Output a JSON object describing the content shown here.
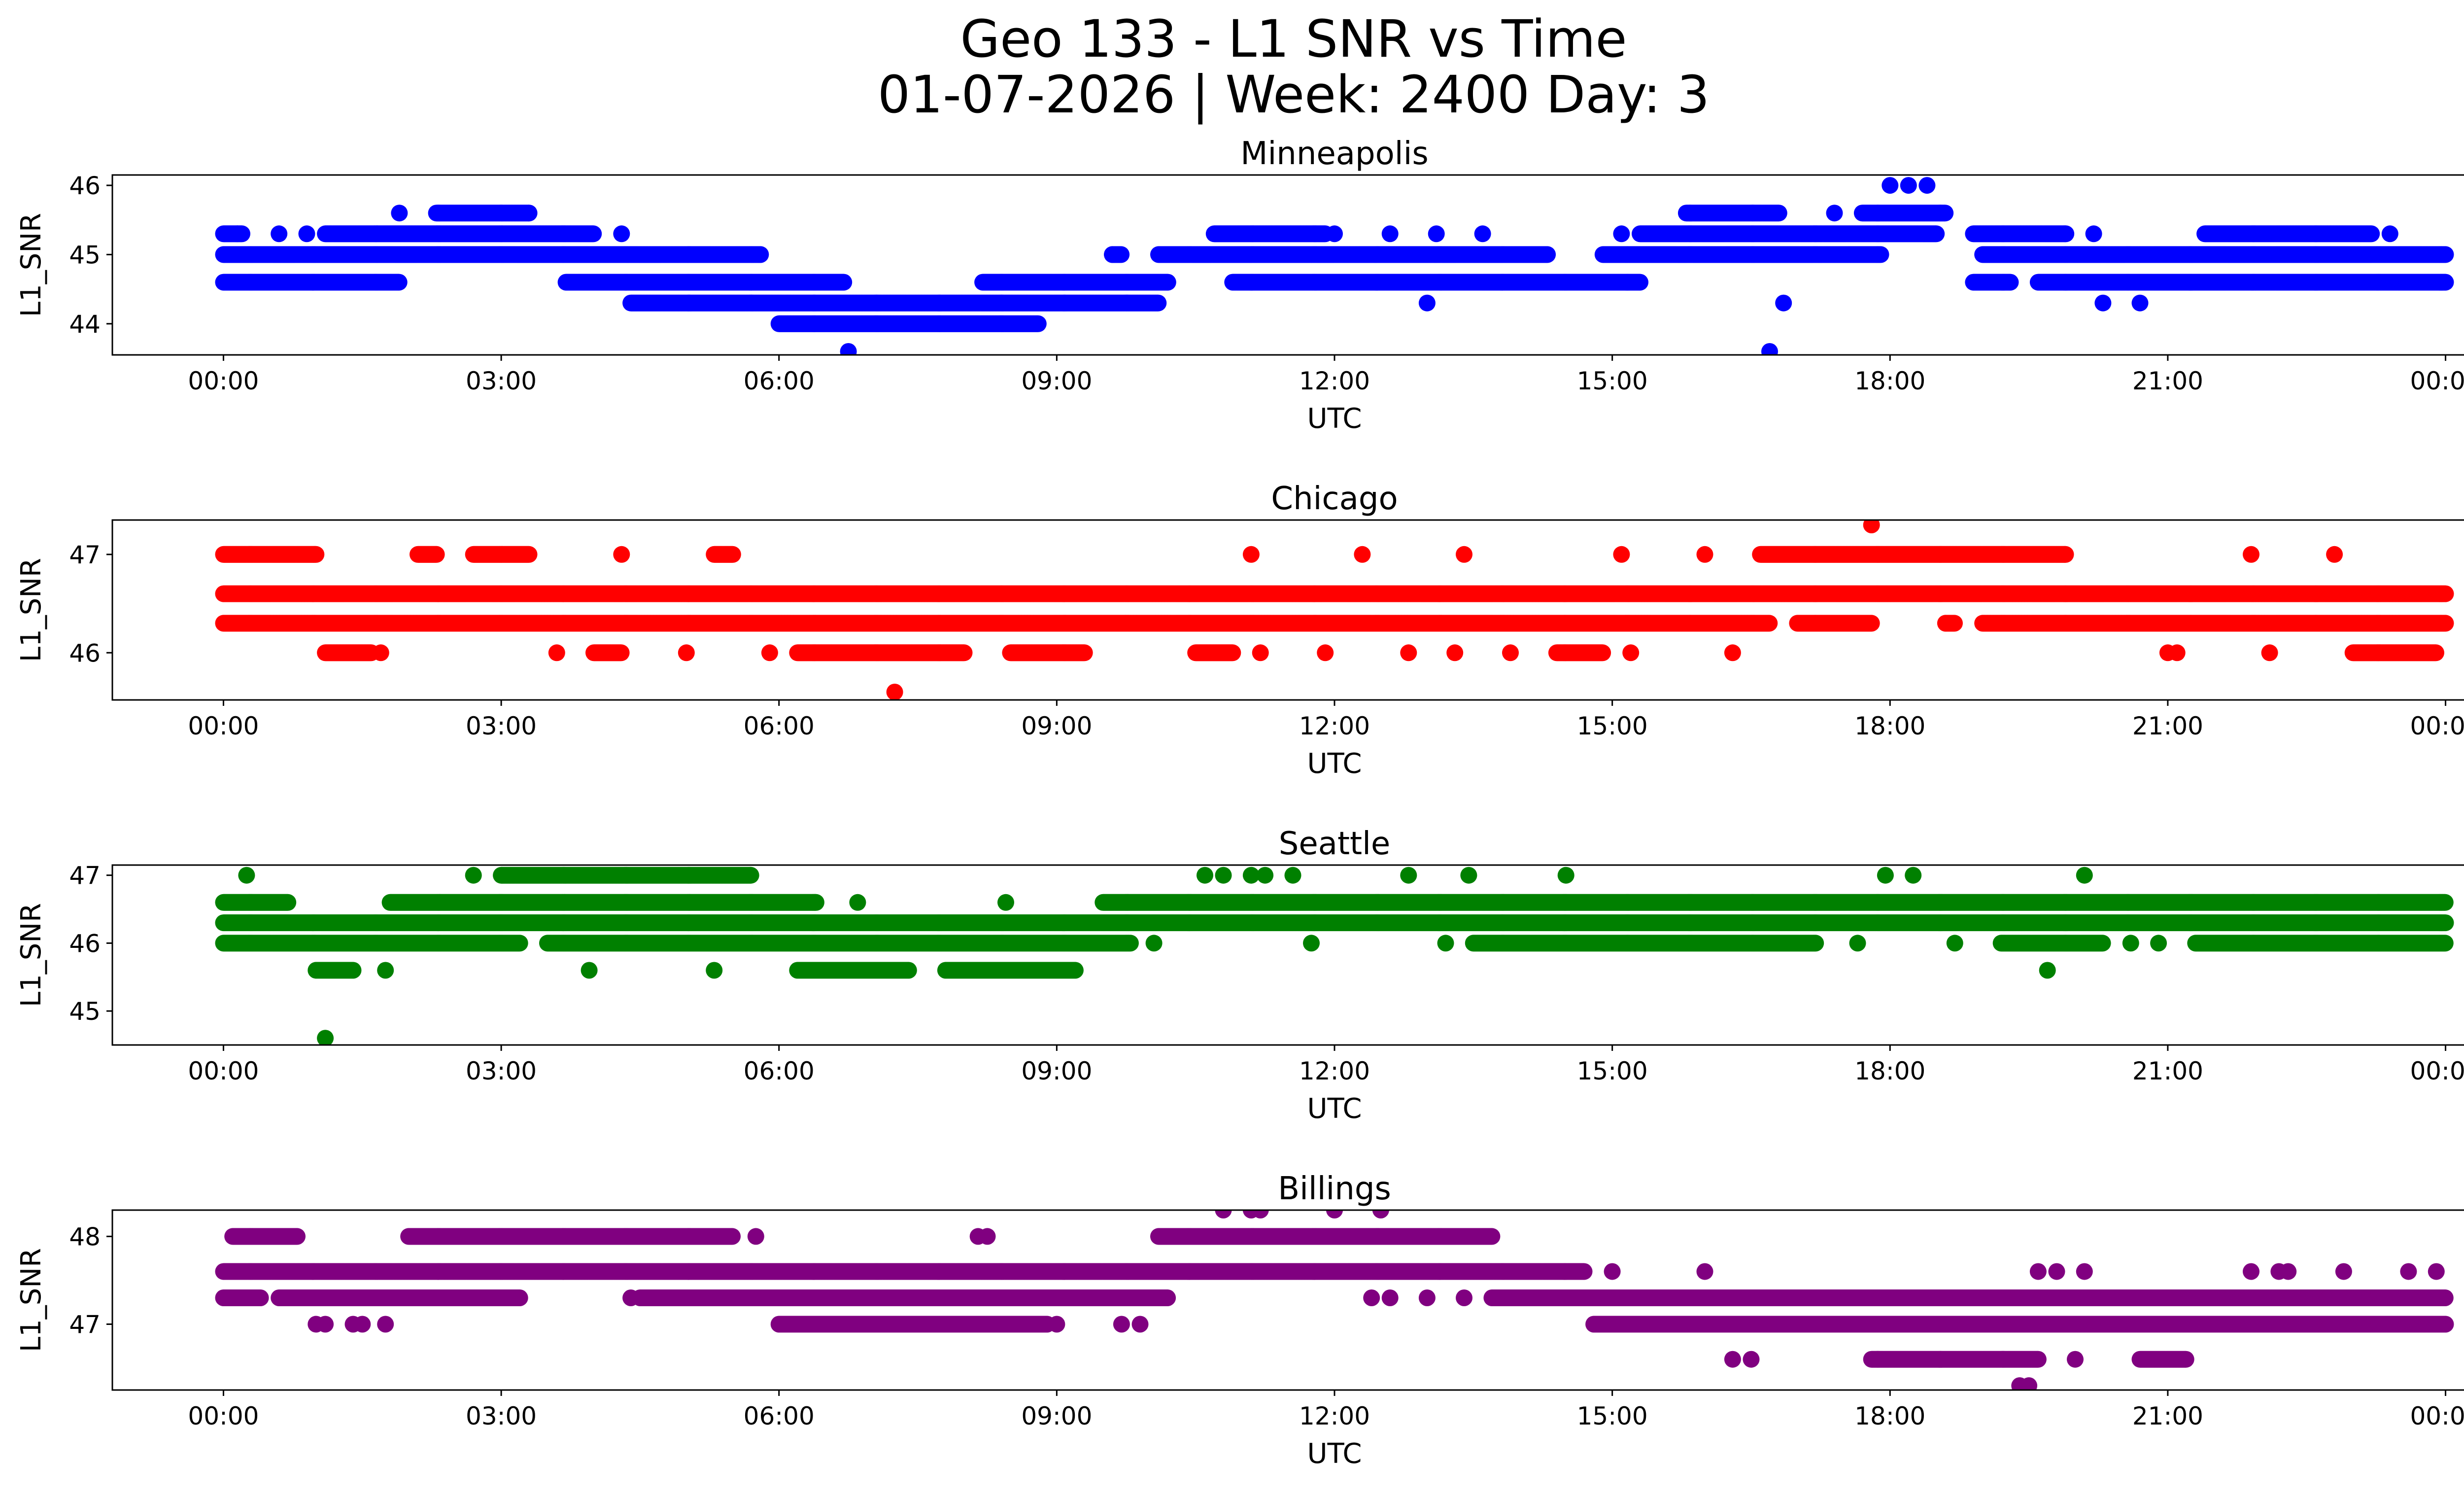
{
  "chart_data": {
    "title_line1": "Geo 133 - L1 SNR vs Time",
    "title_line2": "01-07-2026 | Week: 2400 Day: 3",
    "xlabel": "UTC",
    "ylabel": "L1_SNR",
    "x_ticks": [
      "00:00",
      "03:00",
      "06:00",
      "09:00",
      "12:00",
      "15:00",
      "18:00",
      "21:00",
      "00:00"
    ],
    "x_range_hours": [
      -1.2,
      25.2
    ],
    "subplots": [
      {
        "type": "scatter",
        "title": "Minneapolis",
        "color": "#0000ff",
        "ylim": [
          43.55,
          46.15
        ],
        "y_ticks": [
          "44",
          "45",
          "46"
        ],
        "y_tick_values": [
          44,
          45,
          46
        ],
        "bands": [
          {
            "y": 45.0,
            "segments": [
              [
                0.0,
                5.8
              ],
              [
                9.6,
                9.7
              ],
              [
                10.1,
                14.3
              ],
              [
                14.9,
                17.9
              ],
              [
                19.0,
                24.0
              ]
            ]
          },
          {
            "y": 44.6,
            "segments": [
              [
                0.0,
                1.9
              ],
              [
                3.7,
                6.7
              ],
              [
                8.2,
                10.2
              ],
              [
                10.9,
                15.3
              ],
              [
                18.9,
                19.3
              ],
              [
                19.6,
                24.0
              ]
            ]
          },
          {
            "y": 45.3,
            "segments": [
              [
                0.0,
                0.2
              ],
              [
                1.1,
                4.0
              ],
              [
                10.7,
                11.9
              ],
              [
                15.3,
                18.5
              ],
              [
                18.9,
                19.9
              ],
              [
                21.4,
                23.2
              ]
            ]
          },
          {
            "y": 44.3,
            "segments": [
              [
                4.4,
                10.1
              ]
            ]
          },
          {
            "y": 44.0,
            "segments": [
              [
                6.0,
                8.8
              ]
            ]
          },
          {
            "y": 45.6,
            "segments": [
              [
                2.3,
                3.3
              ],
              [
                15.8,
                16.8
              ],
              [
                17.7,
                18.6
              ]
            ]
          }
        ],
        "points": [
          {
            "x": 0.15,
            "y": 45.3
          },
          {
            "x": 0.6,
            "y": 45.3
          },
          {
            "x": 0.9,
            "y": 45.3
          },
          {
            "x": 1.9,
            "y": 45.6
          },
          {
            "x": 3.3,
            "y": 45.6
          },
          {
            "x": 4.3,
            "y": 45.3
          },
          {
            "x": 5.8,
            "y": 45.0
          },
          {
            "x": 6.75,
            "y": 43.6
          },
          {
            "x": 9.6,
            "y": 45.0
          },
          {
            "x": 12.0,
            "y": 45.3
          },
          {
            "x": 12.6,
            "y": 45.3
          },
          {
            "x": 13.0,
            "y": 44.3
          },
          {
            "x": 13.1,
            "y": 45.3
          },
          {
            "x": 13.6,
            "y": 45.3
          },
          {
            "x": 15.1,
            "y": 45.3
          },
          {
            "x": 16.7,
            "y": 43.6
          },
          {
            "x": 16.85,
            "y": 44.3
          },
          {
            "x": 17.4,
            "y": 45.6
          },
          {
            "x": 18.0,
            "y": 46.0
          },
          {
            "x": 18.2,
            "y": 46.0
          },
          {
            "x": 18.4,
            "y": 46.0
          },
          {
            "x": 20.2,
            "y": 45.3
          },
          {
            "x": 20.3,
            "y": 44.3
          },
          {
            "x": 20.7,
            "y": 44.3
          },
          {
            "x": 23.4,
            "y": 45.3
          }
        ]
      },
      {
        "type": "scatter",
        "title": "Chicago",
        "color": "#ff0000",
        "ylim": [
          45.52,
          47.35
        ],
        "y_ticks": [
          "46",
          "47"
        ],
        "y_tick_values": [
          46,
          47
        ],
        "bands": [
          {
            "y": 46.6,
            "segments": [
              [
                0.0,
                24.0
              ]
            ]
          },
          {
            "y": 46.3,
            "segments": [
              [
                0.0,
                16.7
              ],
              [
                17.0,
                17.8
              ],
              [
                18.6,
                18.7
              ],
              [
                19.0,
                24.0
              ]
            ]
          },
          {
            "y": 47.0,
            "segments": [
              [
                0.0,
                1.0
              ],
              [
                2.1,
                2.3
              ],
              [
                2.7,
                3.3
              ],
              [
                5.3,
                5.5
              ],
              [
                16.6,
                19.9
              ]
            ]
          },
          {
            "y": 46.0,
            "segments": [
              [
                1.1,
                1.6
              ],
              [
                4.0,
                4.3
              ],
              [
                6.2,
                8.0
              ],
              [
                8.5,
                9.3
              ],
              [
                10.5,
                10.9
              ],
              [
                14.4,
                14.9
              ],
              [
                23.0,
                23.9
              ]
            ]
          }
        ],
        "points": [
          {
            "x": 1.7,
            "y": 46.0
          },
          {
            "x": 3.6,
            "y": 46.0
          },
          {
            "x": 4.3,
            "y": 47.0
          },
          {
            "x": 5.0,
            "y": 46.0
          },
          {
            "x": 5.9,
            "y": 46.0
          },
          {
            "x": 7.25,
            "y": 45.6
          },
          {
            "x": 11.1,
            "y": 47.0
          },
          {
            "x": 11.2,
            "y": 46.0
          },
          {
            "x": 11.9,
            "y": 46.0
          },
          {
            "x": 12.3,
            "y": 47.0
          },
          {
            "x": 12.8,
            "y": 46.0
          },
          {
            "x": 13.3,
            "y": 46.0
          },
          {
            "x": 13.4,
            "y": 47.0
          },
          {
            "x": 13.9,
            "y": 46.0
          },
          {
            "x": 15.2,
            "y": 46.0
          },
          {
            "x": 15.1,
            "y": 47.0
          },
          {
            "x": 16.0,
            "y": 47.0
          },
          {
            "x": 16.3,
            "y": 46.0
          },
          {
            "x": 17.8,
            "y": 47.3
          },
          {
            "x": 18.6,
            "y": 46.3
          },
          {
            "x": 21.0,
            "y": 46.0
          },
          {
            "x": 21.1,
            "y": 46.0
          },
          {
            "x": 21.9,
            "y": 47.0
          },
          {
            "x": 22.1,
            "y": 46.0
          },
          {
            "x": 22.8,
            "y": 47.0
          }
        ]
      },
      {
        "type": "scatter",
        "title": "Seattle",
        "color": "#008000",
        "ylim": [
          44.5,
          47.15
        ],
        "y_ticks": [
          "45",
          "46",
          "47"
        ],
        "y_tick_values": [
          45,
          46,
          47
        ],
        "bands": [
          {
            "y": 46.3,
            "segments": [
              [
                0.0,
                24.0
              ]
            ]
          },
          {
            "y": 46.6,
            "segments": [
              [
                0.0,
                0.7
              ],
              [
                1.8,
                6.4
              ],
              [
                9.5,
                24.0
              ]
            ]
          },
          {
            "y": 46.0,
            "segments": [
              [
                0.0,
                3.2
              ],
              [
                3.5,
                9.8
              ],
              [
                13.5,
                17.2
              ],
              [
                19.2,
                20.3
              ],
              [
                21.3,
                24.0
              ]
            ]
          },
          {
            "y": 47.0,
            "segments": [
              [
                3.0,
                5.7
              ]
            ]
          },
          {
            "y": 45.6,
            "segments": [
              [
                1.0,
                1.4
              ],
              [
                6.2,
                7.4
              ],
              [
                7.8,
                9.2
              ]
            ]
          }
        ],
        "points": [
          {
            "x": 0.25,
            "y": 47.0
          },
          {
            "x": 1.1,
            "y": 44.6
          },
          {
            "x": 1.75,
            "y": 45.6
          },
          {
            "x": 2.7,
            "y": 47.0
          },
          {
            "x": 3.95,
            "y": 45.6
          },
          {
            "x": 5.3,
            "y": 45.6
          },
          {
            "x": 6.85,
            "y": 46.6
          },
          {
            "x": 8.45,
            "y": 46.6
          },
          {
            "x": 10.05,
            "y": 46.0
          },
          {
            "x": 10.6,
            "y": 47.0
          },
          {
            "x": 10.8,
            "y": 47.0
          },
          {
            "x": 11.1,
            "y": 47.0
          },
          {
            "x": 11.25,
            "y": 47.0
          },
          {
            "x": 11.55,
            "y": 47.0
          },
          {
            "x": 11.75,
            "y": 46.0
          },
          {
            "x": 12.8,
            "y": 47.0
          },
          {
            "x": 13.2,
            "y": 46.0
          },
          {
            "x": 13.45,
            "y": 47.0
          },
          {
            "x": 14.5,
            "y": 47.0
          },
          {
            "x": 17.65,
            "y": 46.0
          },
          {
            "x": 17.95,
            "y": 47.0
          },
          {
            "x": 18.25,
            "y": 47.0
          },
          {
            "x": 18.7,
            "y": 46.0
          },
          {
            "x": 19.7,
            "y": 45.6
          },
          {
            "x": 20.1,
            "y": 47.0
          },
          {
            "x": 20.6,
            "y": 46.0
          },
          {
            "x": 20.9,
            "y": 46.0
          }
        ]
      },
      {
        "type": "scatter",
        "title": "Billings",
        "color": "#800080",
        "ylim": [
          46.25,
          48.3
        ],
        "y_ticks": [
          "47",
          "48"
        ],
        "y_tick_values": [
          47,
          48
        ],
        "bands": [
          {
            "y": 47.6,
            "segments": [
              [
                0.0,
                14.7
              ]
            ]
          },
          {
            "y": 47.3,
            "segments": [
              [
                0.0,
                0.4
              ],
              [
                0.6,
                3.2
              ],
              [
                4.5,
                10.2
              ],
              [
                13.7,
                24.0
              ]
            ]
          },
          {
            "y": 48.0,
            "segments": [
              [
                0.1,
                0.8
              ],
              [
                2.0,
                5.5
              ],
              [
                10.1,
                13.7
              ]
            ]
          },
          {
            "y": 47.0,
            "segments": [
              [
                6.0,
                8.9
              ],
              [
                14.8,
                24.0
              ]
            ]
          },
          {
            "y": 46.6,
            "segments": [
              [
                17.8,
                19.6
              ],
              [
                20.7,
                21.2
              ]
            ]
          }
        ],
        "points": [
          {
            "x": 1.0,
            "y": 47.0
          },
          {
            "x": 1.1,
            "y": 47.0
          },
          {
            "x": 1.4,
            "y": 47.0
          },
          {
            "x": 1.5,
            "y": 47.0
          },
          {
            "x": 1.75,
            "y": 47.0
          },
          {
            "x": 4.4,
            "y": 47.3
          },
          {
            "x": 5.75,
            "y": 48.0
          },
          {
            "x": 8.15,
            "y": 48.0
          },
          {
            "x": 8.25,
            "y": 48.0
          },
          {
            "x": 9.0,
            "y": 47.0
          },
          {
            "x": 9.7,
            "y": 47.0
          },
          {
            "x": 9.9,
            "y": 47.0
          },
          {
            "x": 10.8,
            "y": 48.3
          },
          {
            "x": 11.1,
            "y": 48.3
          },
          {
            "x": 11.2,
            "y": 48.3
          },
          {
            "x": 12.0,
            "y": 48.3
          },
          {
            "x": 12.5,
            "y": 48.3
          },
          {
            "x": 12.4,
            "y": 47.3
          },
          {
            "x": 12.6,
            "y": 47.3
          },
          {
            "x": 13.0,
            "y": 47.3
          },
          {
            "x": 13.4,
            "y": 47.3
          },
          {
            "x": 15.0,
            "y": 47.6
          },
          {
            "x": 16.0,
            "y": 47.6
          },
          {
            "x": 16.3,
            "y": 46.6
          },
          {
            "x": 16.5,
            "y": 46.6
          },
          {
            "x": 19.4,
            "y": 46.3
          },
          {
            "x": 19.5,
            "y": 46.3
          },
          {
            "x": 19.6,
            "y": 47.6
          },
          {
            "x": 19.8,
            "y": 47.6
          },
          {
            "x": 20.1,
            "y": 47.6
          },
          {
            "x": 20.0,
            "y": 46.6
          },
          {
            "x": 21.9,
            "y": 47.6
          },
          {
            "x": 22.2,
            "y": 47.6
          },
          {
            "x": 22.3,
            "y": 47.6
          },
          {
            "x": 22.9,
            "y": 47.6
          },
          {
            "x": 23.6,
            "y": 47.6
          },
          {
            "x": 23.9,
            "y": 47.6
          }
        ]
      }
    ]
  }
}
